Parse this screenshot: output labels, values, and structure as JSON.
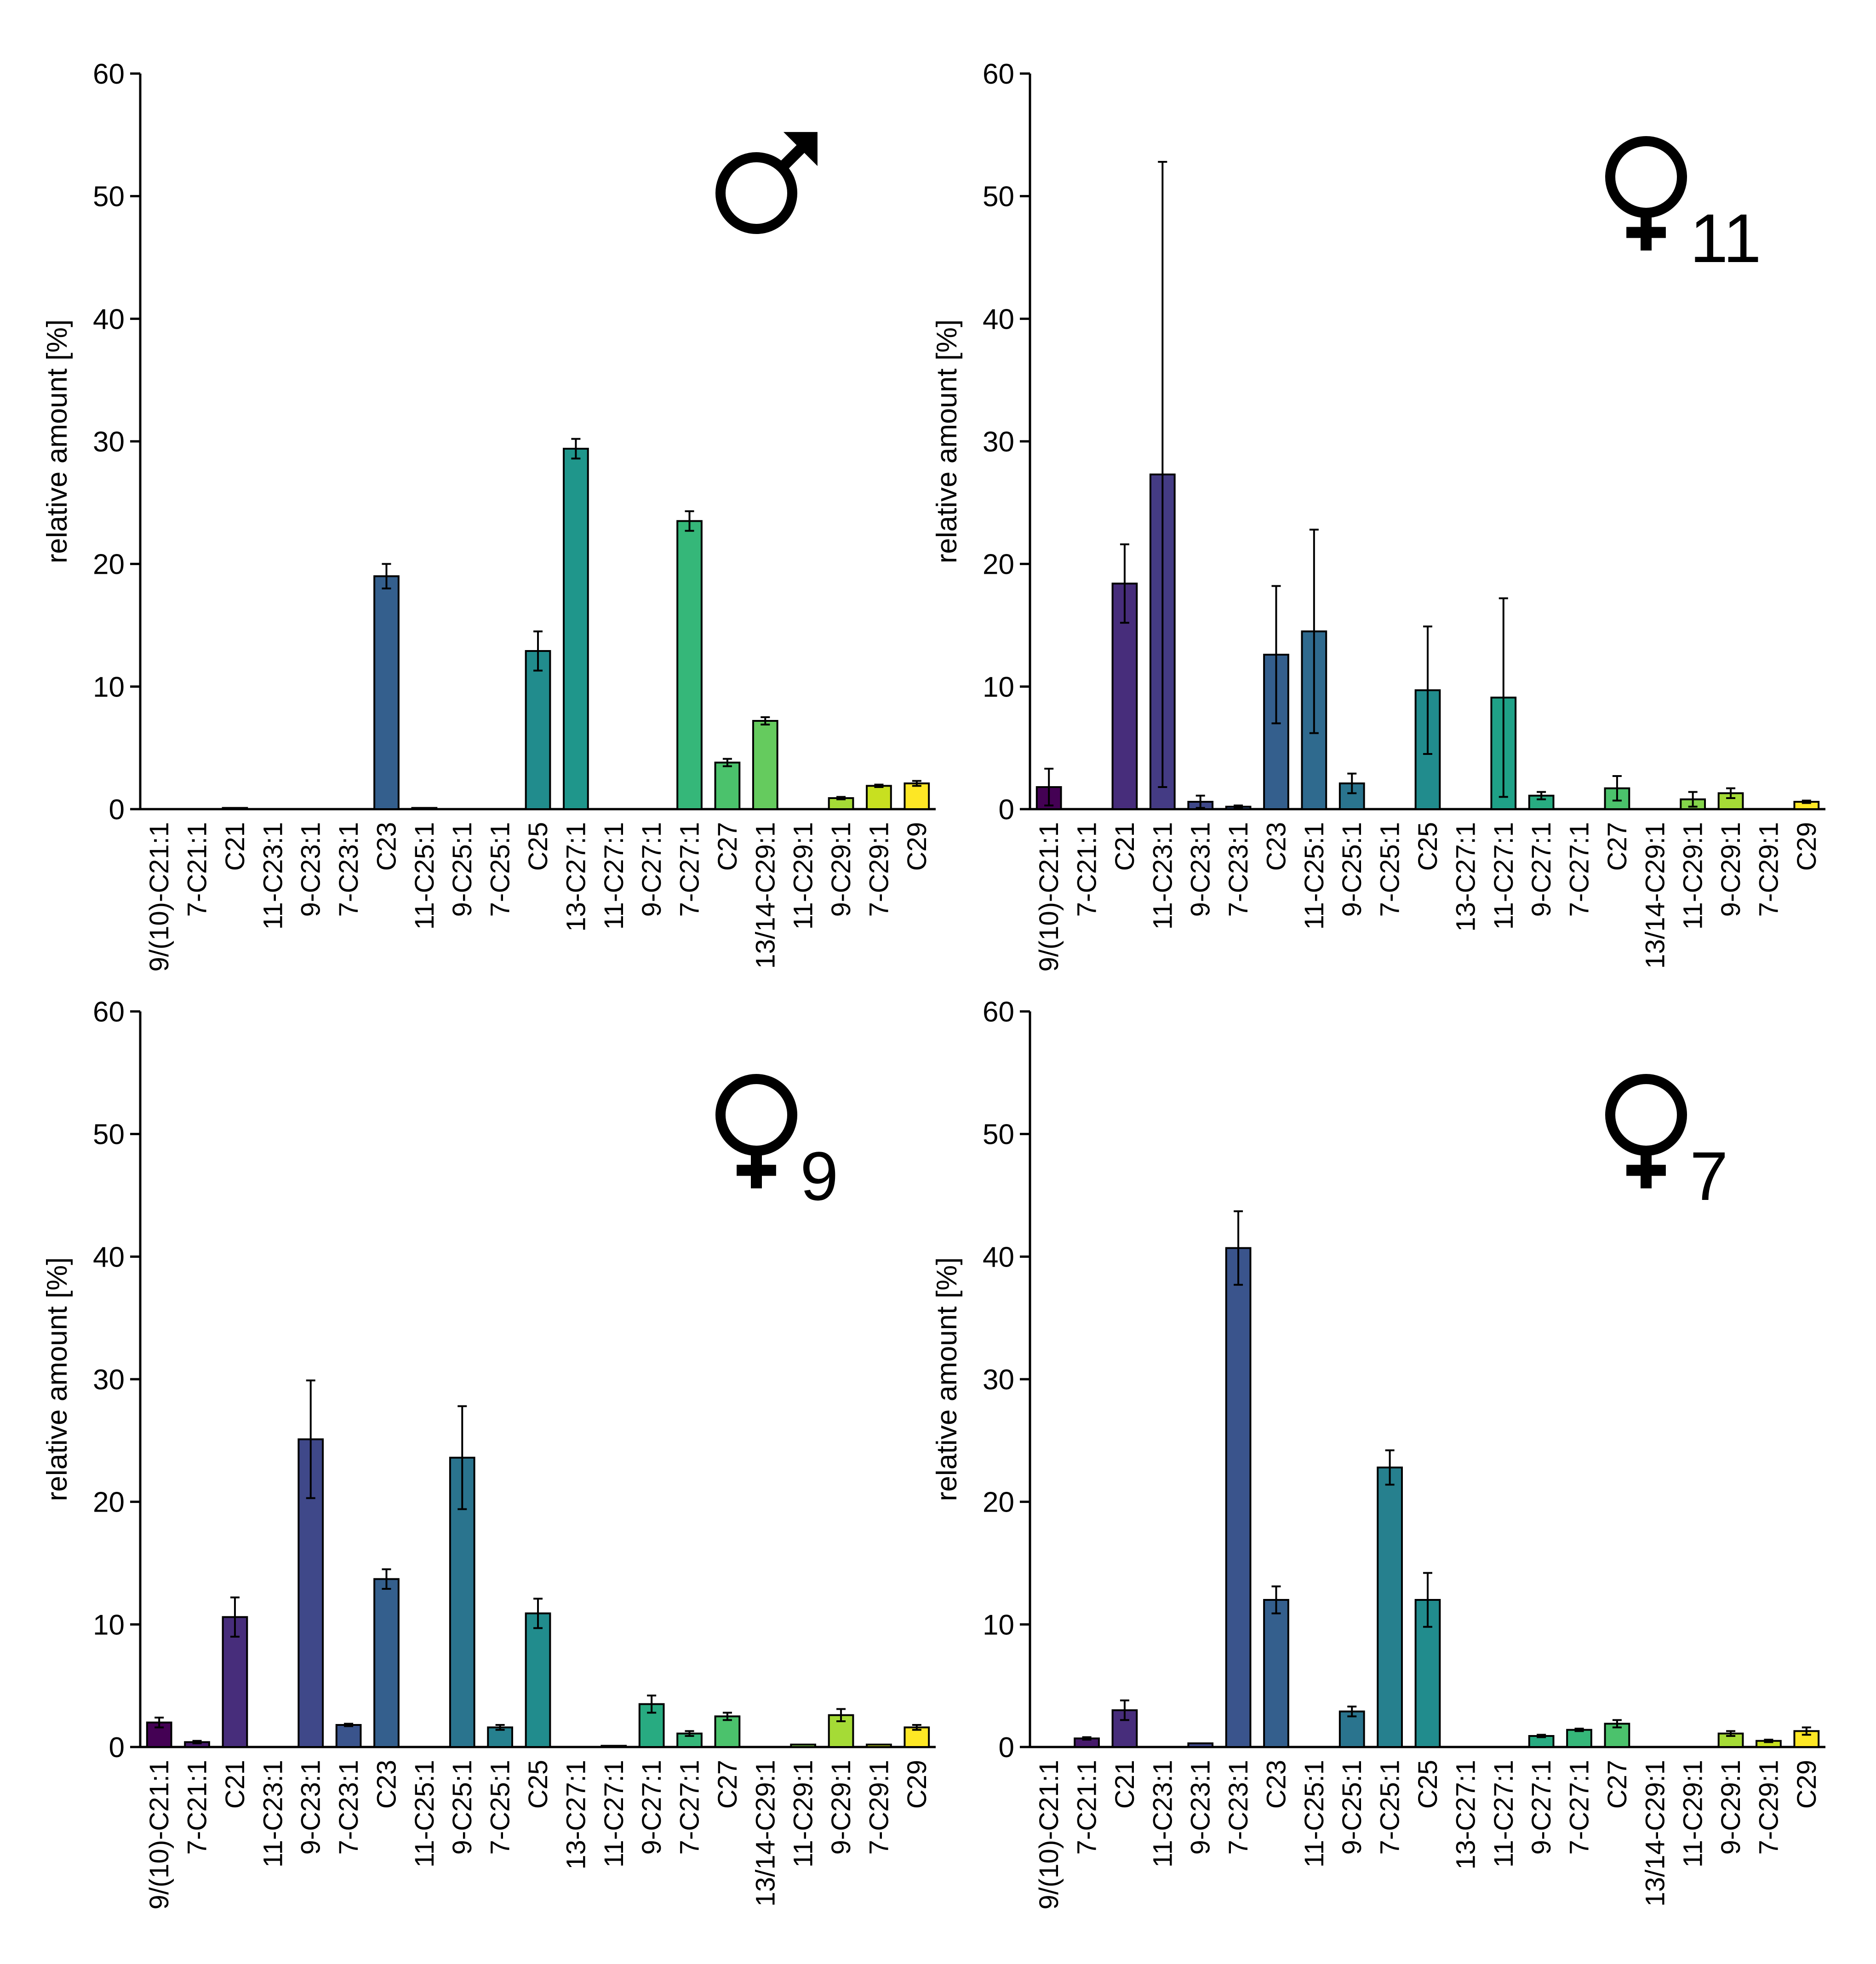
{
  "figure": {
    "y_axis_label": "relative amount [%]"
  },
  "chart_data": [
    {
      "type": "bar",
      "panel": "male",
      "symbol": "male",
      "symbol_subscript": "",
      "ylabel": "relative amount [%]",
      "ylim": [
        0,
        60
      ],
      "yticks": [
        0,
        10,
        20,
        30,
        40,
        50,
        60
      ],
      "categories": [
        "9/(10)-C21:1",
        "7-C21:1",
        "C21",
        "11-C23:1",
        "9-C23:1",
        "7-C23:1",
        "C23",
        "11-C25:1",
        "9-C25:1",
        "7-C25:1",
        "C25",
        "13-C27:1",
        "11-C27:1",
        "9-C27:1",
        "7-C27:1",
        "C27",
        "13/14-C29:1",
        "11-C29:1",
        "9-C29:1",
        "7-C29:1",
        "C29"
      ],
      "values": [
        0,
        0,
        0.1,
        0,
        0,
        0,
        19.0,
        0.1,
        0,
        0,
        12.9,
        29.4,
        0,
        0,
        23.5,
        3.8,
        7.2,
        0,
        0.9,
        1.9,
        2.1
      ],
      "errors": [
        0,
        0,
        0,
        0,
        0,
        0,
        1.0,
        0,
        0,
        0,
        1.6,
        0.8,
        0,
        0,
        0.8,
        0.3,
        0.3,
        0,
        0.1,
        0.1,
        0.2
      ]
    },
    {
      "type": "bar",
      "panel": "female-11",
      "symbol": "female",
      "symbol_subscript": "11",
      "ylabel": "relative amount [%]",
      "ylim": [
        0,
        60
      ],
      "yticks": [
        0,
        10,
        20,
        30,
        40,
        50,
        60
      ],
      "categories": [
        "9/(10)-C21:1",
        "7-C21:1",
        "C21",
        "11-C23:1",
        "9-C23:1",
        "7-C23:1",
        "C23",
        "11-C25:1",
        "9-C25:1",
        "7-C25:1",
        "C25",
        "13-C27:1",
        "11-C27:1",
        "9-C27:1",
        "7-C27:1",
        "C27",
        "13/14-C29:1",
        "11-C29:1",
        "9-C29:1",
        "7-C29:1",
        "C29"
      ],
      "values": [
        1.8,
        0,
        18.4,
        27.3,
        0.6,
        0.2,
        12.6,
        14.5,
        2.1,
        0,
        9.7,
        0,
        9.1,
        1.1,
        0,
        1.7,
        0,
        0.8,
        1.3,
        0,
        0.6
      ],
      "errors": [
        1.5,
        0,
        3.2,
        25.5,
        0.5,
        0.1,
        5.6,
        8.3,
        0.8,
        0,
        5.2,
        0,
        8.1,
        0.3,
        0,
        1.0,
        0,
        0.6,
        0.4,
        0,
        0.1
      ]
    },
    {
      "type": "bar",
      "panel": "female-9",
      "symbol": "female",
      "symbol_subscript": "9",
      "ylabel": "relative amount [%]",
      "ylim": [
        0,
        60
      ],
      "yticks": [
        0,
        10,
        20,
        30,
        40,
        50,
        60
      ],
      "categories": [
        "9/(10)-C21:1",
        "7-C21:1",
        "C21",
        "11-C23:1",
        "9-C23:1",
        "7-C23:1",
        "C23",
        "11-C25:1",
        "9-C25:1",
        "7-C25:1",
        "C25",
        "13-C27:1",
        "11-C27:1",
        "9-C27:1",
        "7-C27:1",
        "C27",
        "13/14-C29:1",
        "11-C29:1",
        "9-C29:1",
        "7-C29:1",
        "C29"
      ],
      "values": [
        2.0,
        0.4,
        10.6,
        0,
        25.1,
        1.8,
        13.7,
        0,
        23.6,
        1.6,
        10.9,
        0,
        0.1,
        3.5,
        1.1,
        2.5,
        0,
        0.2,
        2.6,
        0.2,
        1.6
      ],
      "errors": [
        0.4,
        0.1,
        1.6,
        0,
        4.8,
        0.1,
        0.8,
        0,
        4.2,
        0.2,
        1.2,
        0,
        0,
        0.7,
        0.2,
        0.3,
        0,
        0,
        0.5,
        0,
        0.2
      ]
    },
    {
      "type": "bar",
      "panel": "female-7",
      "symbol": "female",
      "symbol_subscript": "7",
      "ylabel": "relative amount [%]",
      "ylim": [
        0,
        60
      ],
      "yticks": [
        0,
        10,
        20,
        30,
        40,
        50,
        60
      ],
      "categories": [
        "9/(10)-C21:1",
        "7-C21:1",
        "C21",
        "11-C23:1",
        "9-C23:1",
        "7-C23:1",
        "C23",
        "11-C25:1",
        "9-C25:1",
        "7-C25:1",
        "C25",
        "13-C27:1",
        "11-C27:1",
        "9-C27:1",
        "7-C27:1",
        "C27",
        "13/14-C29:1",
        "11-C29:1",
        "9-C29:1",
        "7-C29:1",
        "C29"
      ],
      "values": [
        0,
        0.7,
        3.0,
        0,
        0.3,
        40.7,
        12.0,
        0,
        2.9,
        22.8,
        12.0,
        0,
        0,
        0.9,
        1.4,
        1.9,
        0,
        0,
        1.1,
        0.5,
        1.3
      ],
      "errors": [
        0,
        0.1,
        0.8,
        0,
        0,
        3.0,
        1.1,
        0,
        0.4,
        1.4,
        2.2,
        0,
        0,
        0.1,
        0.1,
        0.3,
        0,
        0,
        0.2,
        0.1,
        0.3
      ]
    }
  ]
}
